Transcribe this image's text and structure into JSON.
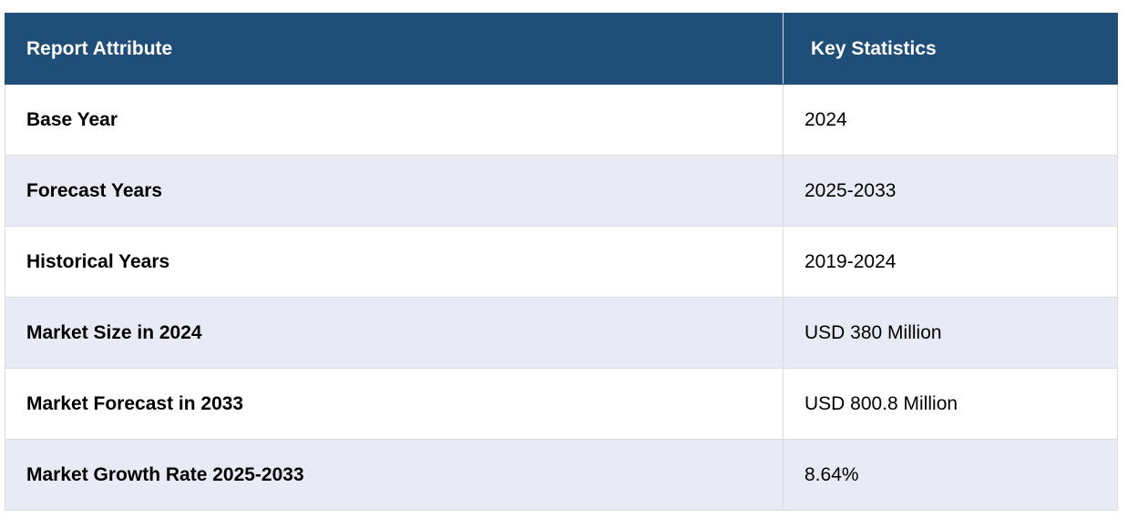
{
  "table": {
    "headers": {
      "attribute": "Report Attribute",
      "statistics": "Key Statistics"
    },
    "rows": [
      {
        "attribute": "Base Year",
        "value": "2024"
      },
      {
        "attribute": "Forecast Years",
        "value": "2025-2033"
      },
      {
        "attribute": "Historical Years",
        "value": "2019-2024"
      },
      {
        "attribute": "Market Size in 2024",
        "value": "USD 380 Million"
      },
      {
        "attribute": "Market Forecast in 2033",
        "value": "USD 800.8 Million"
      },
      {
        "attribute": "Market Growth Rate 2025-2033",
        "value": "8.64%"
      }
    ],
    "colors": {
      "header_background": "#1f4e79",
      "header_text": "#ffffff",
      "row_alt_background": "#e8ebf5",
      "row_background": "#ffffff"
    }
  }
}
